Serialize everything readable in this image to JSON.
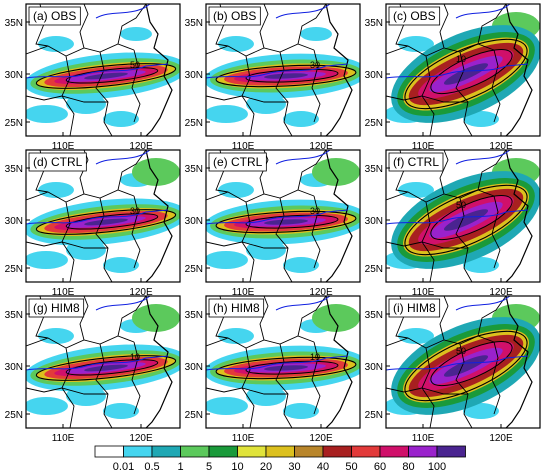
{
  "figure": {
    "panels": [
      {
        "id": "a",
        "label": "(a) OBS"
      },
      {
        "id": "b",
        "label": "(b) OBS"
      },
      {
        "id": "c",
        "label": "(c) OBS"
      },
      {
        "id": "d",
        "label": "(d) CTRL"
      },
      {
        "id": "e",
        "label": "(e) CTRL"
      },
      {
        "id": "f",
        "label": "(f) CTRL"
      },
      {
        "id": "g",
        "label": "(g) HIM8"
      },
      {
        "id": "h",
        "label": "(h) HIM8"
      },
      {
        "id": "i",
        "label": "(i) HIM8"
      }
    ],
    "lat_ticks": [
      "35N",
      "30N",
      "25N"
    ],
    "lon_ticks": [
      "110E",
      "120E"
    ],
    "colorbar": {
      "levels": [
        "0.01",
        "0.5",
        "1",
        "5",
        "10",
        "20",
        "30",
        "40",
        "50",
        "60",
        "80",
        "100"
      ],
      "colors": [
        "#ffffff",
        "#45d5ef",
        "#1fa8b4",
        "#5cc95c",
        "#1a9a3a",
        "#e0e33a",
        "#dcc01e",
        "#b8852a",
        "#a82020",
        "#e23a3a",
        "#d0106a",
        "#9a22cc",
        "#4a2490"
      ]
    },
    "contour_labels": [
      "50",
      "30",
      "10",
      "30",
      "30",
      "50",
      "10",
      "10",
      "50"
    ],
    "colors": {
      "river": "#1020e0",
      "coast": "#000000",
      "border": "#000000"
    }
  }
}
